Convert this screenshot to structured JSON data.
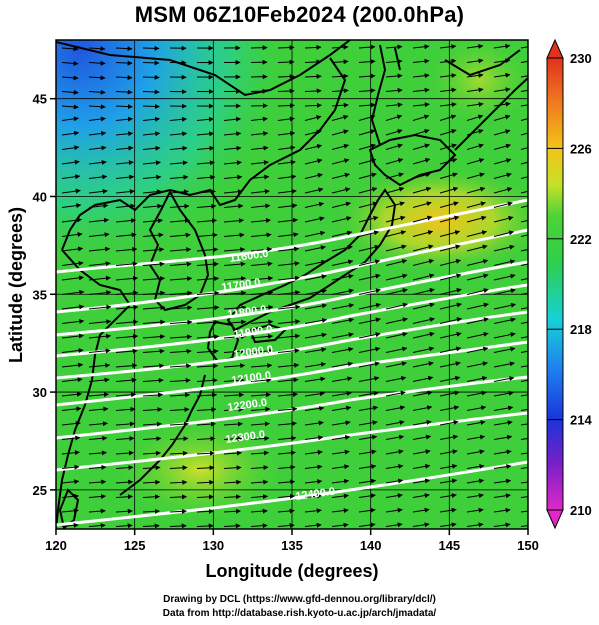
{
  "title": "MSM 06Z10Feb2024 (200.0hPa)",
  "map": {
    "xlabel": "Longitude (degrees)",
    "ylabel": "Latitude  (degrees)",
    "xlim": [
      120,
      150
    ],
    "ylim": [
      23,
      48
    ],
    "xticks": [
      "120",
      "125",
      "130",
      "135",
      "140",
      "145",
      "150"
    ],
    "yticks": [
      "25",
      "30",
      "35",
      "40",
      "45"
    ],
    "contour_labels": [
      "11600.0",
      "11700.0",
      "11800.0",
      "11900.0",
      "12000.0",
      "12100.0",
      "12200.0",
      "12300.0",
      "12400.0"
    ],
    "colors": {
      "background_field": "#3ecf3a",
      "cold_pool": "#1f57e0",
      "warm_area": "#f2c419",
      "contours": "#ffffff",
      "coastlines": "#000000",
      "vectors": "#000000"
    }
  },
  "colorbar": {
    "min": 210,
    "max": 230,
    "labels": [
      "230",
      "226",
      "222",
      "218",
      "214",
      "210"
    ]
  },
  "credits": {
    "line1": "Drawing by DCL (https://www.gfd-dennou.org/library/dcl/)",
    "line2": "Data from http://database.rish.kyoto-u.ac.jp/arch/jmadata/"
  }
}
